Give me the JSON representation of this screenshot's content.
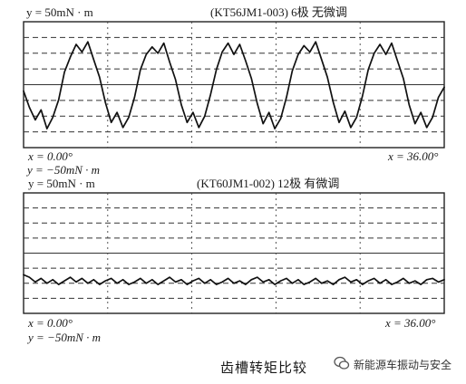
{
  "chart_data": [
    {
      "type": "line",
      "title": "(KT56JM1-003) 6极  无微调",
      "y_top_label": "y = 50mN · m",
      "y_bottom_label": "y = −50mN · m",
      "x_start_label": "x = 0.00°",
      "x_end_label": "x = 36.00°",
      "xlim": [
        0,
        36
      ],
      "ylim": [
        -50,
        50
      ],
      "grid": true,
      "series": [
        {
          "x": [
            0,
            0.5,
            1,
            1.5,
            2,
            2.5,
            3,
            3.5,
            4,
            4.5,
            5,
            5.5,
            6,
            6.5,
            7,
            7.5,
            8,
            8.5,
            9,
            9.5,
            10,
            10.5,
            11,
            11.5,
            12,
            12.5,
            13,
            13.5,
            14,
            14.5,
            15,
            15.5,
            16,
            16.5,
            17,
            17.5,
            18,
            18.5,
            19,
            19.5,
            20,
            20.5,
            21,
            21.5,
            22,
            22.5,
            23,
            23.5,
            24,
            24.5,
            25,
            25.5,
            26,
            26.5,
            27,
            27.5,
            28,
            28.5,
            29,
            29.5,
            30,
            30.5,
            31,
            31.5,
            32,
            32.5,
            33,
            33.5,
            34,
            34.5,
            35,
            35.5,
            36
          ],
          "y": [
            -5,
            -18,
            -28,
            -20,
            -35,
            -26,
            -12,
            10,
            22,
            32,
            26,
            34,
            20,
            6,
            -14,
            -30,
            -22,
            -34,
            -26,
            -10,
            12,
            24,
            30,
            25,
            33,
            18,
            4,
            -16,
            -30,
            -22,
            -34,
            -25,
            -8,
            12,
            26,
            33,
            24,
            32,
            19,
            5,
            -15,
            -31,
            -22,
            -35,
            -27,
            -10,
            11,
            24,
            31,
            26,
            34,
            20,
            6,
            -14,
            -30,
            -21,
            -34,
            -26,
            -9,
            12,
            25,
            32,
            24,
            33,
            19,
            5,
            -16,
            -31,
            -22,
            -34,
            -26,
            -10,
            -2
          ]
        }
      ]
    },
    {
      "type": "line",
      "title": "(KT60JM1-002) 12极  有微调",
      "y_top_label": "y = 50mN · m",
      "y_bottom_label": "y = −50mN · m",
      "x_start_label": "x = 0.00°",
      "x_end_label": "x = 36.00°",
      "xlim": [
        0,
        36
      ],
      "ylim": [
        -50,
        50
      ],
      "grid": true,
      "series": [
        {
          "x": [
            0,
            0.5,
            1,
            1.5,
            2,
            2.5,
            3,
            3.5,
            4,
            4.5,
            5,
            5.5,
            6,
            6.5,
            7,
            7.5,
            8,
            8.5,
            9,
            9.5,
            10,
            10.5,
            11,
            11.5,
            12,
            12.5,
            13,
            13.5,
            14,
            14.5,
            15,
            15.5,
            16,
            16.5,
            17,
            17.5,
            18,
            18.5,
            19,
            19.5,
            20,
            20.5,
            21,
            21.5,
            22,
            22.5,
            23,
            23.5,
            24,
            24.5,
            25,
            25.5,
            26,
            26.5,
            27,
            27.5,
            28,
            28.5,
            29,
            29.5,
            30,
            30.5,
            31,
            31.5,
            32,
            32.5,
            33,
            33.5,
            34,
            34.5,
            35,
            35.5,
            36
          ],
          "y": [
            -18,
            -20,
            -24,
            -21,
            -25,
            -22,
            -26,
            -23,
            -20,
            -24,
            -21,
            -25,
            -22,
            -26,
            -23,
            -21,
            -25,
            -22,
            -26,
            -24,
            -21,
            -25,
            -22,
            -26,
            -23,
            -20,
            -24,
            -22,
            -26,
            -23,
            -21,
            -25,
            -22,
            -26,
            -24,
            -21,
            -25,
            -23,
            -26,
            -22,
            -20,
            -24,
            -22,
            -26,
            -23,
            -21,
            -25,
            -22,
            -26,
            -24,
            -21,
            -25,
            -23,
            -26,
            -22,
            -20,
            -24,
            -22,
            -26,
            -23,
            -21,
            -25,
            -22,
            -26,
            -24,
            -21,
            -25,
            -23,
            -26,
            -22,
            -21,
            -24,
            -22
          ]
        }
      ]
    }
  ],
  "caption": "齿槽转矩比较",
  "watermark": "新能源车振动与安全"
}
